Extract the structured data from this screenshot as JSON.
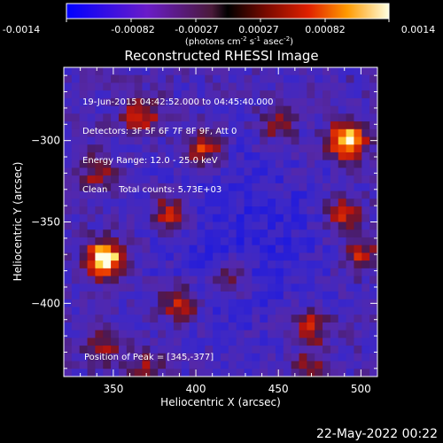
{
  "chart_data": {
    "type": "heatmap",
    "title": "Reconstructed RHESSI Image",
    "xlabel": "Heliocentric X (arcsec)",
    "ylabel": "Heliocentric Y (arcsec)",
    "xlim": [
      320,
      510
    ],
    "ylim": [
      -445,
      -255
    ],
    "xticks": [
      350,
      400,
      450,
      500
    ],
    "yticks": [
      -300,
      -350,
      -400
    ],
    "colorbar": {
      "ticks": [
        "-0.0014",
        "-0.00082",
        "-0.00027",
        "0.00027",
        "0.00082",
        "0.0014"
      ],
      "range": [
        -0.0014,
        0.0014
      ],
      "label_main": "(photons cm",
      "label_exp1": "-2",
      "label_s": " s",
      "label_exp2": "-1",
      "label_asec": " asec",
      "label_exp3": "-2",
      "label_end": ")"
    },
    "annotations": [
      "19-Jun-2015 04:42:52.000 to 04:45:40.000",
      "Detectors: 3F 5F 6F 7F 8F 9F, Att 0",
      "Energy Range: 12.0 - 25.0 keV",
      "Clean    Total counts: 5.73E+03"
    ],
    "peak_label": "Position of Peak = [345,-377]",
    "peak_position": [
      345,
      -377
    ],
    "sources": [
      {
        "x": 345,
        "y": -373,
        "intensity": 1.0
      },
      {
        "x": 492,
        "y": -300,
        "intensity": 0.95
      },
      {
        "x": 405,
        "y": -305,
        "intensity": 0.55
      },
      {
        "x": 367,
        "y": -285,
        "intensity": 0.5
      },
      {
        "x": 385,
        "y": -345,
        "intensity": 0.55
      },
      {
        "x": 390,
        "y": -400,
        "intensity": 0.55
      },
      {
        "x": 420,
        "y": -385,
        "intensity": 0.45
      },
      {
        "x": 470,
        "y": -415,
        "intensity": 0.5
      },
      {
        "x": 500,
        "y": -370,
        "intensity": 0.45
      },
      {
        "x": 490,
        "y": -345,
        "intensity": 0.5
      },
      {
        "x": 450,
        "y": -290,
        "intensity": 0.4
      },
      {
        "x": 345,
        "y": -425,
        "intensity": 0.4
      },
      {
        "x": 340,
        "y": -320,
        "intensity": 0.35
      },
      {
        "x": 470,
        "y": -440,
        "intensity": 0.35
      },
      {
        "x": 370,
        "y": -440,
        "intensity": 0.3
      }
    ]
  },
  "footer": {
    "date": "22-May-2022 00:22"
  }
}
